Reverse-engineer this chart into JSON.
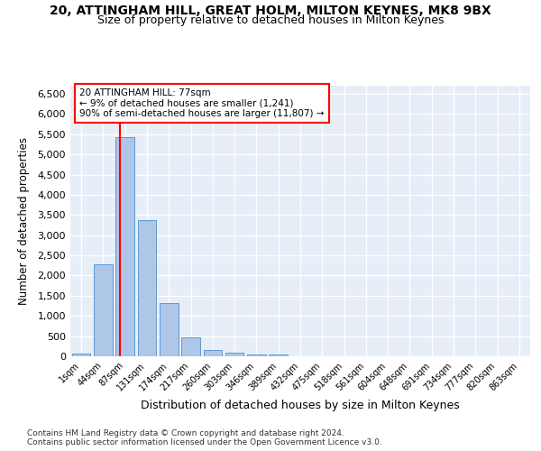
{
  "title1": "20, ATTINGHAM HILL, GREAT HOLM, MILTON KEYNES, MK8 9BX",
  "title2": "Size of property relative to detached houses in Milton Keynes",
  "xlabel": "Distribution of detached houses by size in Milton Keynes",
  "ylabel": "Number of detached properties",
  "footnote1": "Contains HM Land Registry data © Crown copyright and database right 2024.",
  "footnote2": "Contains public sector information licensed under the Open Government Licence v3.0.",
  "bar_labels": [
    "1sqm",
    "44sqm",
    "87sqm",
    "131sqm",
    "174sqm",
    "217sqm",
    "260sqm",
    "303sqm",
    "346sqm",
    "389sqm",
    "432sqm",
    "475sqm",
    "518sqm",
    "561sqm",
    "604sqm",
    "648sqm",
    "691sqm",
    "734sqm",
    "777sqm",
    "820sqm",
    "863sqm"
  ],
  "bar_values": [
    70,
    2280,
    5430,
    3380,
    1310,
    480,
    160,
    80,
    55,
    50,
    0,
    0,
    0,
    0,
    0,
    0,
    0,
    0,
    0,
    0,
    0
  ],
  "bar_color": "#aec6e8",
  "bar_edge_color": "#5b9bd5",
  "annotation_title": "20 ATTINGHAM HILL: 77sqm",
  "annotation_line1": "← 9% of detached houses are smaller (1,241)",
  "annotation_line2": "90% of semi-detached houses are larger (11,807) →",
  "ylim_max": 6700,
  "yticks": [
    0,
    500,
    1000,
    1500,
    2000,
    2500,
    3000,
    3500,
    4000,
    4500,
    5000,
    5500,
    6000,
    6500
  ],
  "vline_color": "red",
  "annotation_box_facecolor": "white",
  "annotation_box_edgecolor": "red",
  "grid_color": "white",
  "bg_color": "#e8eef8"
}
